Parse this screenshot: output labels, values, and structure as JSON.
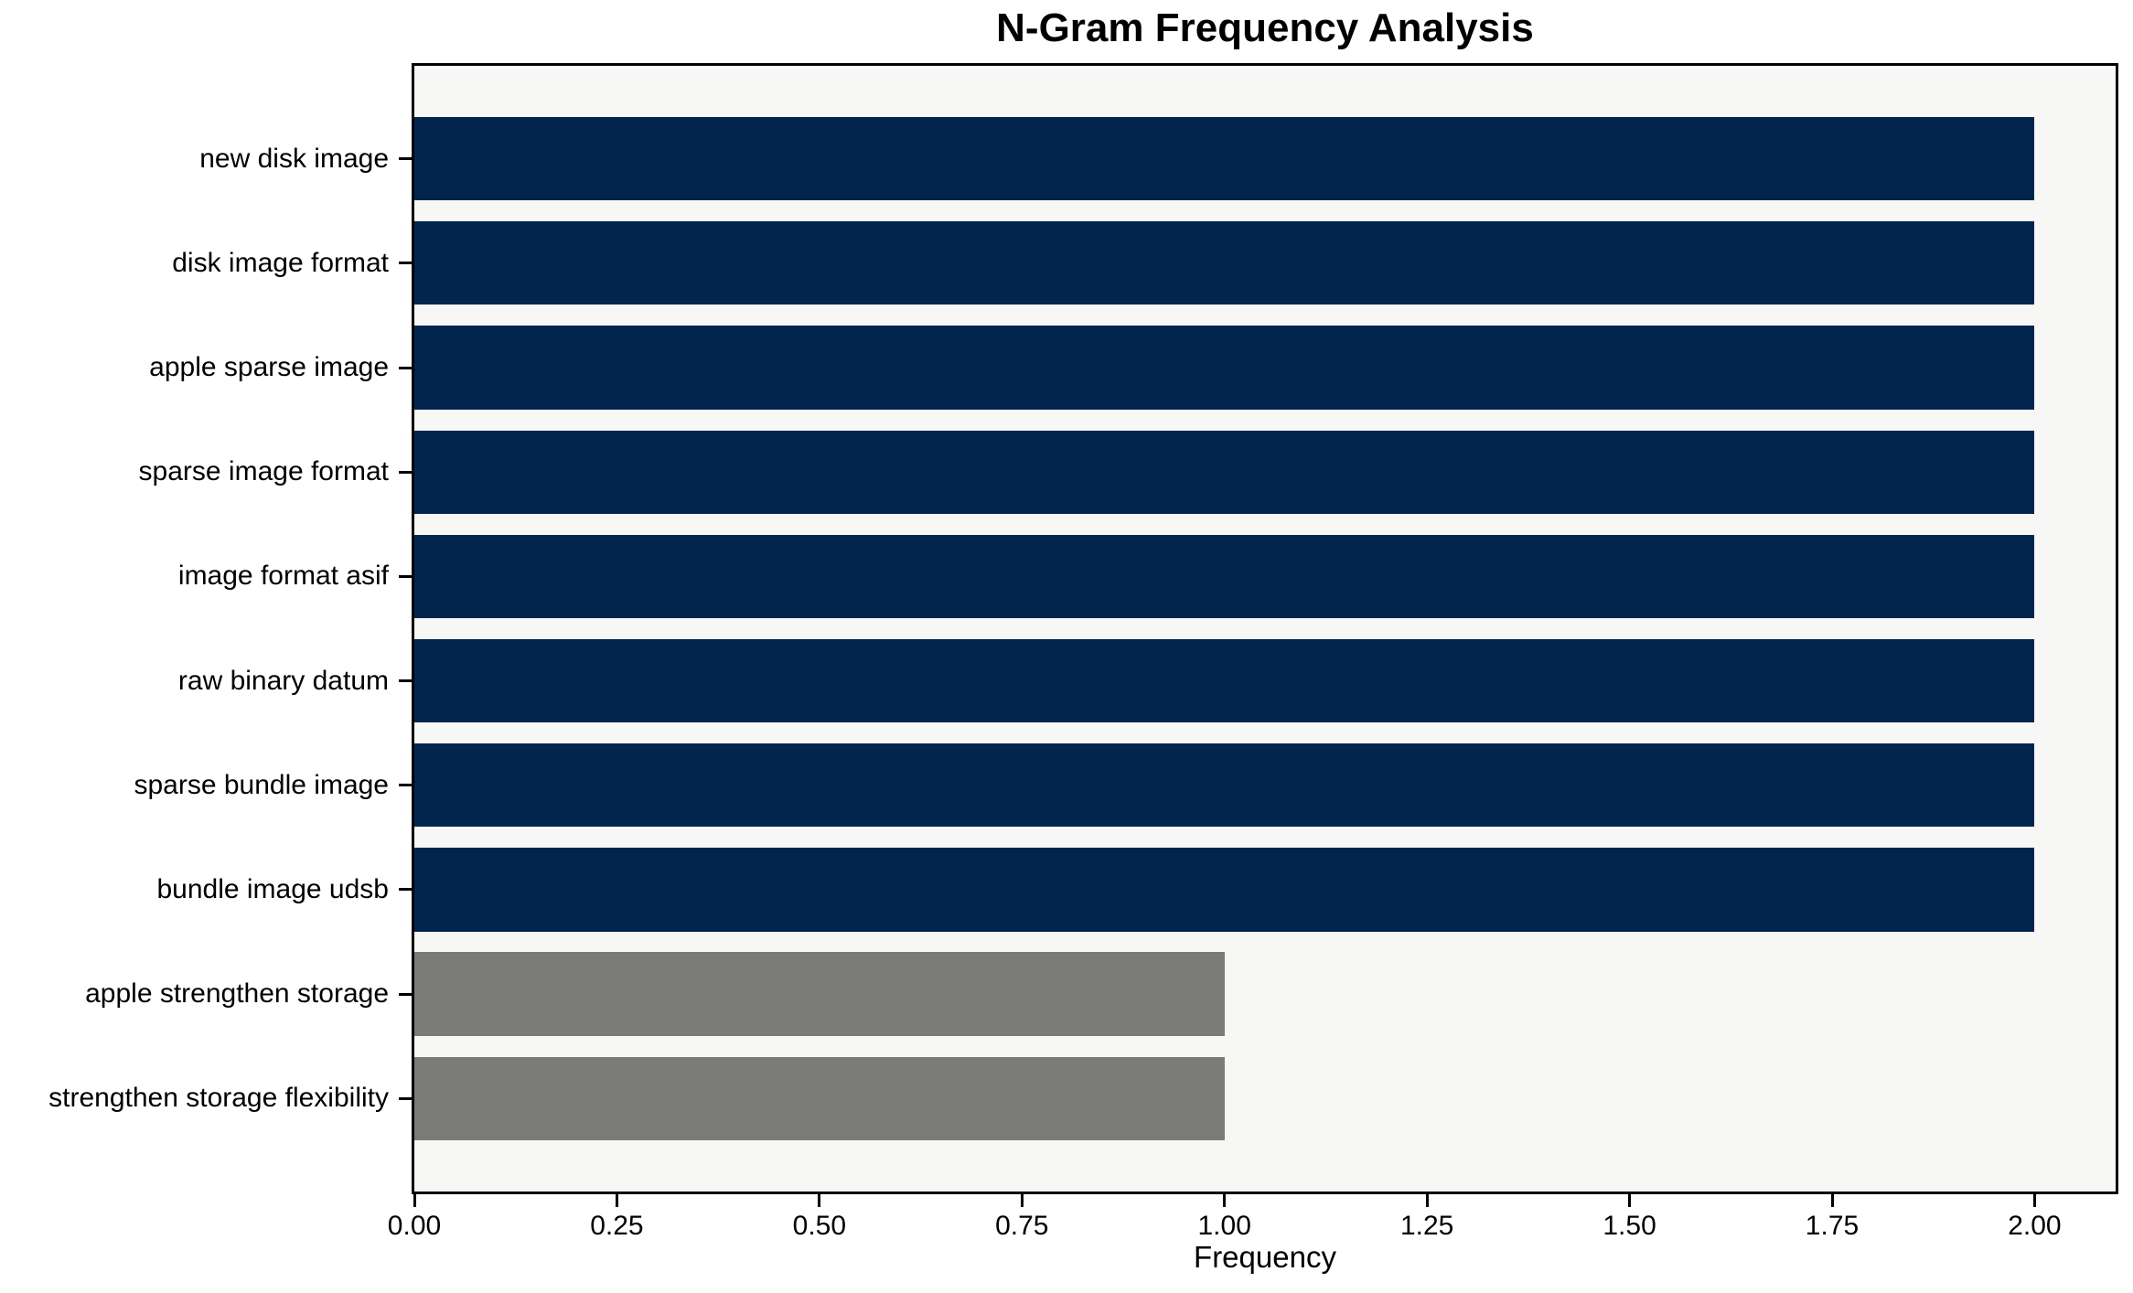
{
  "chart_data": {
    "type": "bar",
    "orientation": "horizontal",
    "title": "N-Gram Frequency Analysis",
    "xlabel": "Frequency",
    "ylabel": "",
    "categories": [
      "new disk image",
      "disk image format",
      "apple sparse image",
      "sparse image format",
      "image format asif",
      "raw binary datum",
      "sparse bundle image",
      "bundle image udsb",
      "apple strengthen storage",
      "strengthen storage flexibility"
    ],
    "values": [
      2,
      2,
      2,
      2,
      2,
      2,
      2,
      2,
      1,
      1
    ],
    "bar_colors": [
      "#02254e",
      "#02254e",
      "#02254e",
      "#02254e",
      "#02254e",
      "#02254e",
      "#02254e",
      "#02254e",
      "#7b7b77",
      "#7b7b77"
    ],
    "xlim": [
      0,
      2.1
    ],
    "xticks": {
      "values": [
        0,
        0.25,
        0.5,
        0.75,
        1.0,
        1.25,
        1.5,
        1.75,
        2.0
      ],
      "labels": [
        "0.00",
        "0.25",
        "0.50",
        "0.75",
        "1.00",
        "1.25",
        "1.50",
        "1.75",
        "2.00"
      ]
    },
    "grid": false,
    "legend_position": "none",
    "colors": {
      "bar_primary": "#02254e",
      "bar_secondary": "#7b7b77",
      "plot_background": "#f7f7f6",
      "figure_background": "#ffffff",
      "spine": "#000000",
      "text": "#000000"
    }
  }
}
